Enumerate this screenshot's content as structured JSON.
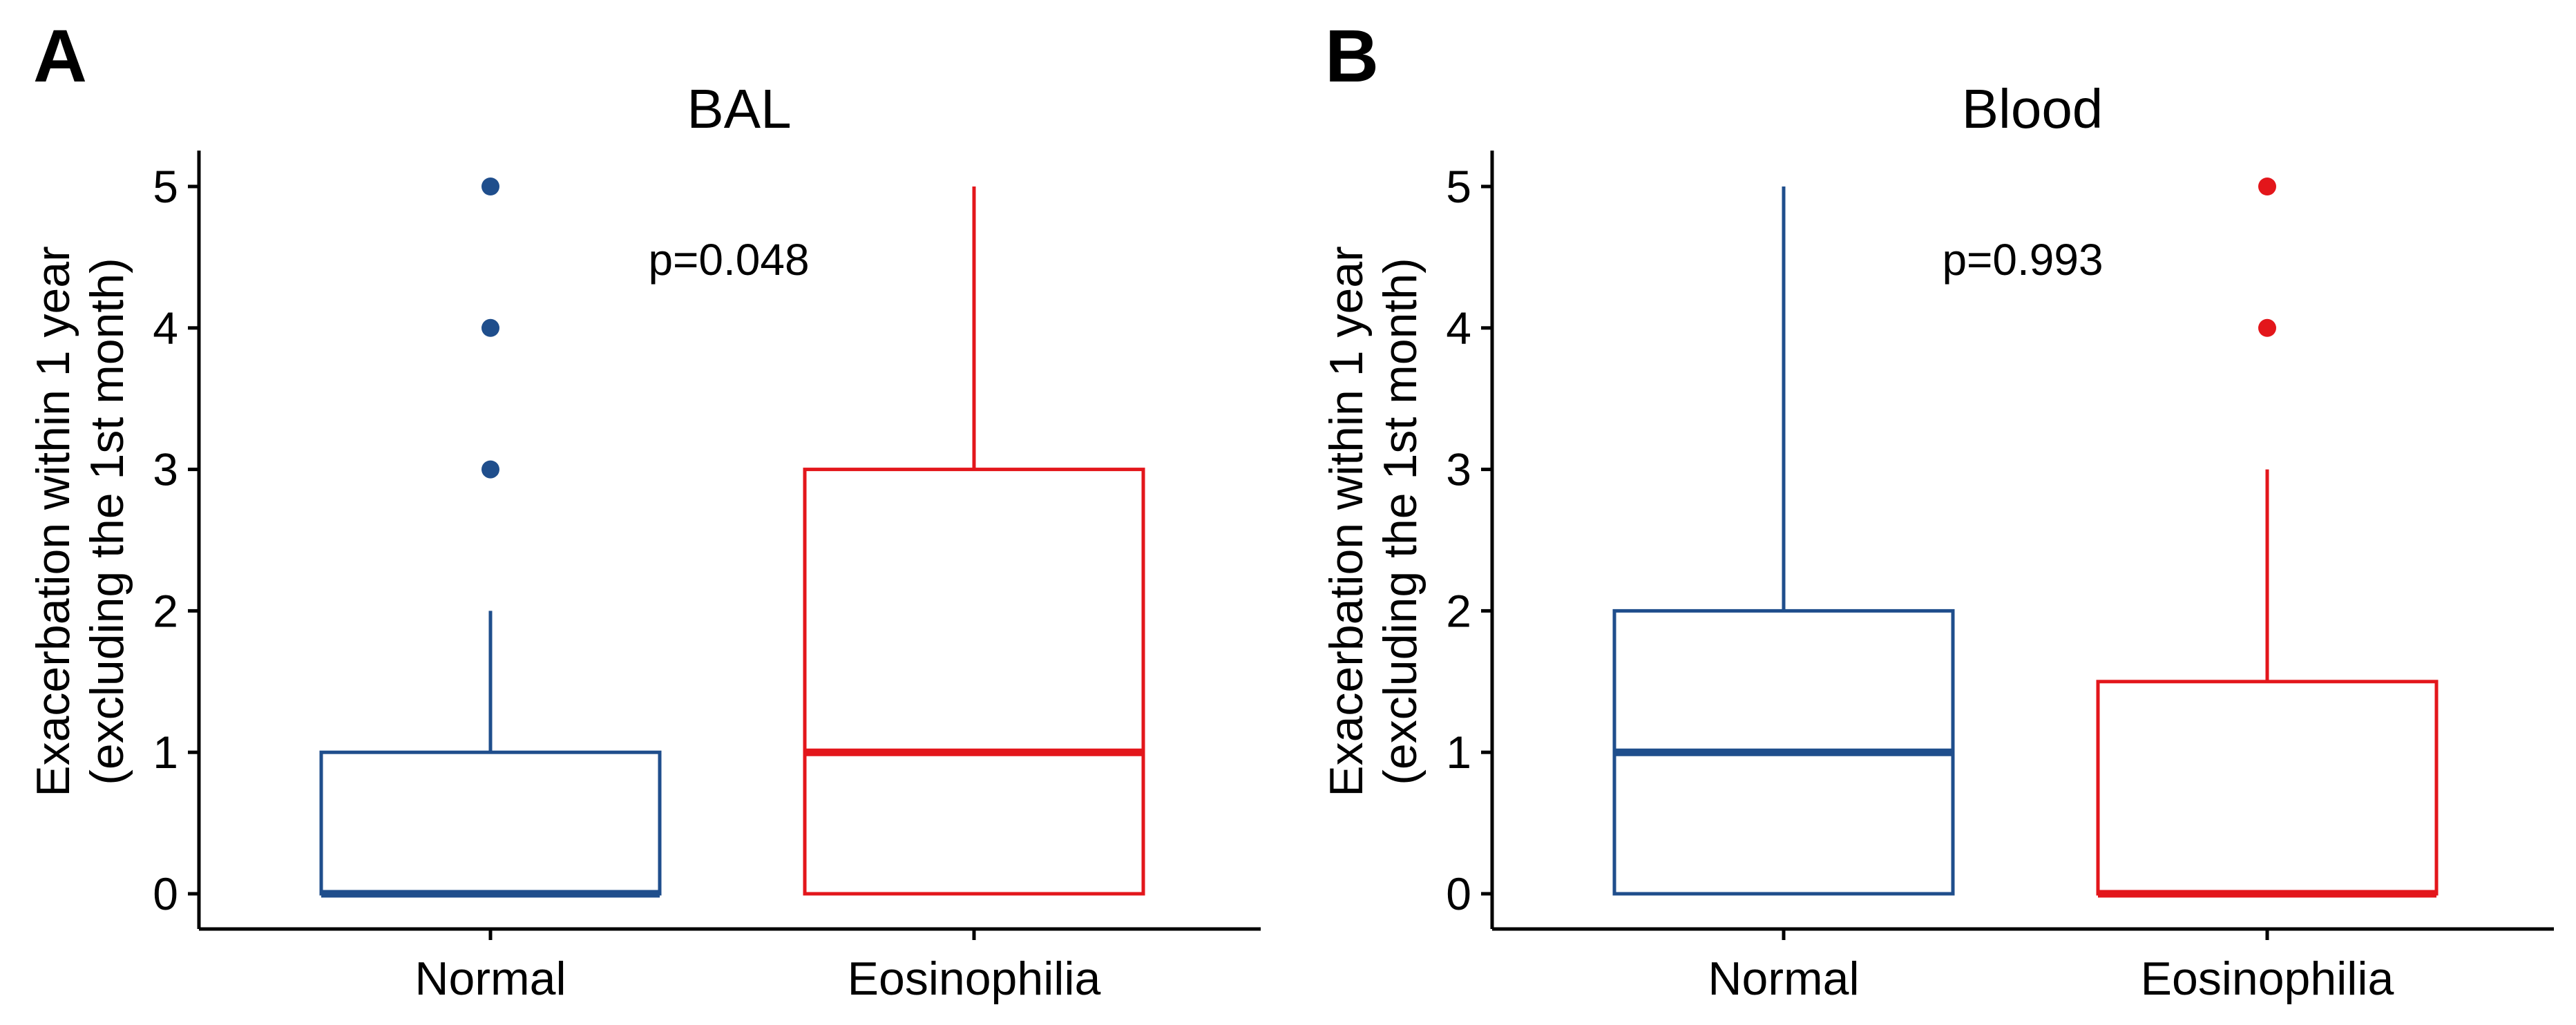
{
  "chart_data": [
    {
      "type": "box",
      "panel_label": "A",
      "title": "BAL",
      "ylabel_line1": "Exacerbation within 1 year",
      "ylabel_line2": "(excluding the 1st month)",
      "xlabel": "",
      "ylim": [
        0,
        5
      ],
      "yticks": [
        0,
        1,
        2,
        3,
        4,
        5
      ],
      "categories": [
        "Normal",
        "Eosinophilia"
      ],
      "annotation": "p=0.048",
      "boxes": [
        {
          "name": "Normal",
          "color": "#1f4e8c",
          "whisker_low": 0,
          "q1": 0,
          "median": 0,
          "q3": 1,
          "whisker_high": 2,
          "outliers": [
            3,
            4,
            5
          ]
        },
        {
          "name": "Eosinophilia",
          "color": "#e3161b",
          "whisker_low": 0,
          "q1": 0,
          "median": 1,
          "q3": 3,
          "whisker_high": 5,
          "outliers": []
        }
      ]
    },
    {
      "type": "box",
      "panel_label": "B",
      "title": "Blood",
      "ylabel_line1": "Exacerbation within 1 year",
      "ylabel_line2": "(excluding the 1st month)",
      "xlabel": "",
      "ylim": [
        0,
        5
      ],
      "yticks": [
        0,
        1,
        2,
        3,
        4,
        5
      ],
      "categories": [
        "Normal",
        "Eosinophilia"
      ],
      "annotation": "p=0.993",
      "boxes": [
        {
          "name": "Normal",
          "color": "#1f4e8c",
          "whisker_low": 0,
          "q1": 0,
          "median": 1,
          "q3": 2,
          "whisker_high": 5,
          "outliers": []
        },
        {
          "name": "Eosinophilia",
          "color": "#e3161b",
          "whisker_low": 0,
          "q1": 0,
          "median": 0,
          "q3": 1.5,
          "whisker_high": 3,
          "outliers": [
            4,
            5
          ]
        }
      ]
    }
  ]
}
